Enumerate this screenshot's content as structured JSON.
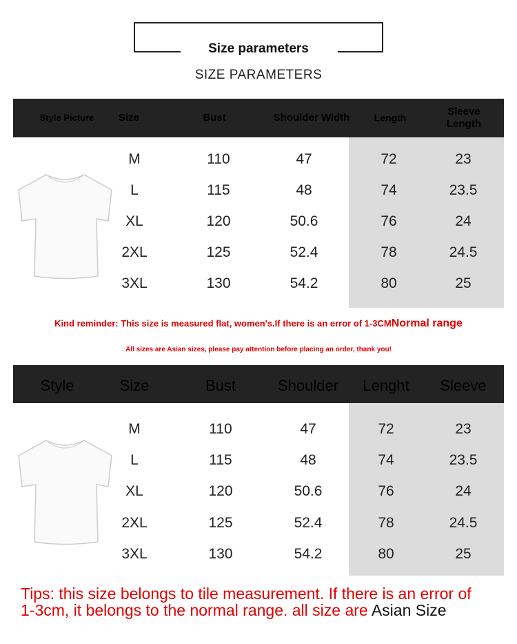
{
  "title": "Size parameters",
  "subtitle": "SIZE PARAMETERS",
  "table1": {
    "headers": [
      "Style Picture",
      "Size",
      "Bust",
      "Shoulder Width",
      "Length",
      "Sleeve Length"
    ],
    "rows": [
      [
        "M",
        "110",
        "47",
        "72",
        "23"
      ],
      [
        "L",
        "115",
        "48",
        "74",
        "23.5"
      ],
      [
        "XL",
        "120",
        "50.6",
        "76",
        "24"
      ],
      [
        "2XL",
        "125",
        "52.4",
        "78",
        "24.5"
      ],
      [
        "3XL",
        "130",
        "54.2",
        "80",
        "25"
      ]
    ]
  },
  "reminder": {
    "main": "Kind reminder: This size is measured flat, women's.If there is an error of 1-3CM",
    "emphasis": "Normal range",
    "note": "All sizes are Asian sizes, please pay attention before placing an order, thank you!"
  },
  "table2": {
    "headers": [
      "Style",
      "Size",
      "Bust",
      "Shoulder",
      "Lenght",
      "Sleeve"
    ],
    "rows": [
      [
        "M",
        "110",
        "47",
        "72",
        "23"
      ],
      [
        "L",
        "115",
        "48",
        "74",
        "23.5"
      ],
      [
        "XL",
        "120",
        "50.6",
        "76",
        "24"
      ],
      [
        "2XL",
        "125",
        "52.4",
        "78",
        "24.5"
      ],
      [
        "3XL",
        "130",
        "54.2",
        "80",
        "25"
      ]
    ]
  },
  "tips": {
    "line1": "Tips: this size belongs to tile measurement. If there is an error of",
    "line2": "1-3cm, it belongs to the normal range. all size are ",
    "asian": "Asian Size"
  },
  "colors": {
    "header_bg": "#232323",
    "highlight_bg": "#dcdcdc",
    "red": "#e00000"
  }
}
